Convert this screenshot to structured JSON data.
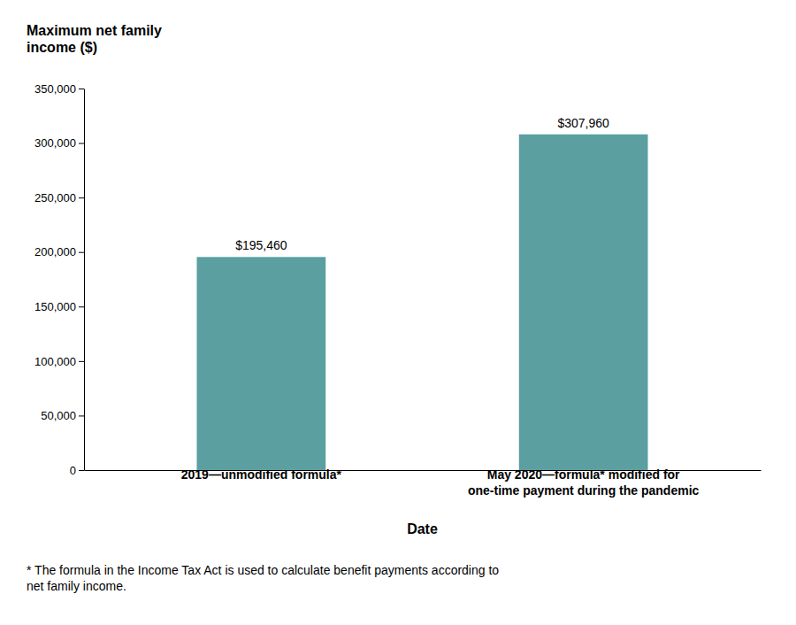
{
  "chart_data": {
    "type": "bar",
    "categories": [
      "2019—unmodified formula*",
      "May 2020—formula* modified for\none-time payment during the pandemic"
    ],
    "values": [
      195460,
      307960
    ],
    "value_labels": [
      "$195,460",
      "$307,960"
    ],
    "data_labels": true,
    "color": "#5b9fa0",
    "ylabel": "Maximum net family\nincome ($)",
    "xlabel": "Date",
    "ylim": [
      0,
      350000
    ],
    "yticks": [
      0,
      {
        "value": 50000,
        "label": "50,000"
      },
      {
        "value": 100000,
        "label": "100,000"
      },
      {
        "value": 150000,
        "label": "150,000"
      },
      {
        "value": 200000,
        "label": "200,000"
      },
      {
        "value": 250000,
        "label": "250,000"
      },
      {
        "value": 300000,
        "label": "300,000"
      },
      {
        "value": 350000,
        "label": "350,000"
      }
    ],
    "grid": false,
    "annotations": [
      "* The formula in the Income Tax Act is used to calculate benefit payments according to\nnet family income."
    ]
  }
}
